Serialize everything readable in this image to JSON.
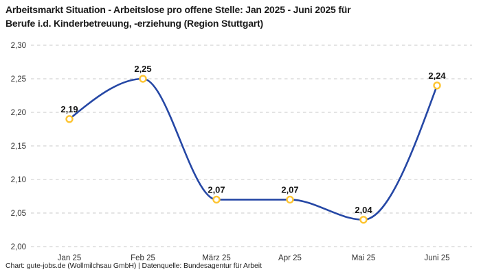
{
  "header": {
    "title_line1": "Arbeitsmarkt Situation - Arbeitslose pro offene Stelle: Jan 2025 - Juni 2025 für",
    "title_line2": "Berufe i.d. Kinderbetreuung, -erziehung (Region Stuttgart)"
  },
  "footer": {
    "attribution": "Chart: gute-jobs.de (Wollmilchsau GmbH) | Datenquelle: Bundesagentur für Arbeit"
  },
  "chart_data": {
    "type": "line",
    "title": "Arbeitsmarkt Situation - Arbeitslose pro offene Stelle: Jan 2025 - Juni 2025 für Berufe i.d. Kinderbetreuung, -erziehung (Region Stuttgart)",
    "categories": [
      "Jan 25",
      "Feb 25",
      "März 25",
      "Apr 25",
      "Mai 25",
      "Juni 25"
    ],
    "values": [
      2.19,
      2.25,
      2.07,
      2.07,
      2.04,
      2.24
    ],
    "value_labels": [
      "2,19",
      "2,25",
      "2,07",
      "2,07",
      "2,04",
      "2,24"
    ],
    "xlabel": "",
    "ylabel": "",
    "ylim": [
      2.0,
      2.3
    ],
    "yticks": [
      2.0,
      2.05,
      2.1,
      2.15,
      2.2,
      2.25,
      2.3
    ],
    "ytick_labels": [
      "2,00",
      "2,05",
      "2,10",
      "2,15",
      "2,20",
      "2,25",
      "2,30"
    ],
    "grid": "horizontal-dashed",
    "legend": "none",
    "interpolation": "monotone",
    "colors": {
      "line": "#2547a5",
      "marker_ring": "#fdc431",
      "marker_fill": "#ffffff",
      "grid": "#c8c8c8",
      "value_label": "#141414",
      "axis_text": "#2e2e2e",
      "title": "#1a1a1a"
    }
  }
}
